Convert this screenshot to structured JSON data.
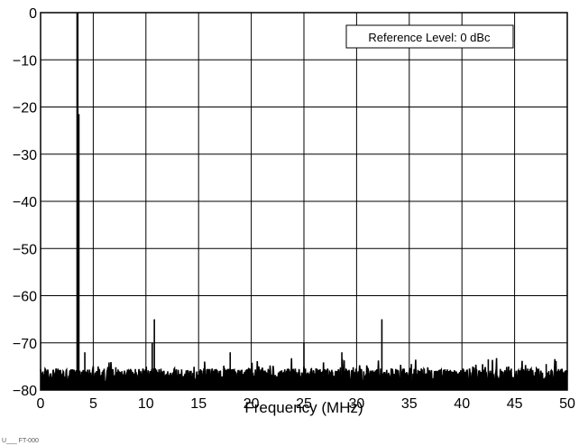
{
  "chart_data": {
    "type": "line",
    "title": "",
    "xlabel": "Frequency (MHz)",
    "ylabel": "",
    "xlim": [
      0,
      50
    ],
    "ylim": [
      -80,
      0
    ],
    "x_ticks": [
      "0",
      "5",
      "10",
      "15",
      "20",
      "25",
      "30",
      "35",
      "40",
      "45",
      "50"
    ],
    "y_ticks": [
      "0",
      "−10",
      "−20",
      "−30",
      "−40",
      "−50",
      "−60",
      "−70",
      "−80"
    ],
    "grid": true,
    "annotation": "Reference Level: 0 dBc",
    "noise_floor_db": -77,
    "spurs": [
      {
        "x": 3.5,
        "y": 0
      },
      {
        "x": 3.6,
        "y": -21.5
      },
      {
        "x": 4.2,
        "y": -72
      },
      {
        "x": 10.6,
        "y": -70
      },
      {
        "x": 10.8,
        "y": -65
      },
      {
        "x": 18.0,
        "y": -72
      },
      {
        "x": 25.0,
        "y": -70
      },
      {
        "x": 28.6,
        "y": -72
      },
      {
        "x": 32.4,
        "y": -65
      },
      {
        "x": 35.2,
        "y": -74.5
      },
      {
        "x": 42.5,
        "y": -73.5
      },
      {
        "x": 48.0,
        "y": -74.5
      }
    ],
    "line_color": "#000000",
    "grid_color": "#000000"
  },
  "footer_code": "U___ FT-000"
}
